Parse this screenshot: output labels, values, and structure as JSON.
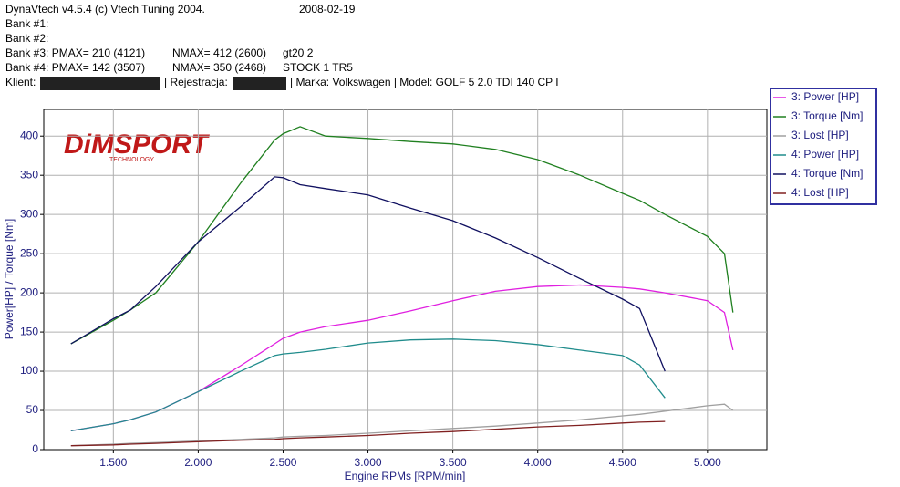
{
  "header": {
    "program": "DynaVtech v4.5.4 (c) Vtech Tuning 2004.",
    "date": "2008-02-19",
    "bank1": "Bank #1:",
    "bank2": "Bank #2:",
    "bank3": {
      "pmax": "Bank #3: PMAX= 210 (4121)",
      "nmax": "NMAX= 412 (2600)",
      "note": "gt20 2"
    },
    "bank4": {
      "pmax": "Bank #4: PMAX= 142 (3507)",
      "nmax": "NMAX= 350 (2468)",
      "note": "STOCK 1 TR5"
    },
    "client": {
      "label": "Klient:",
      "registration": "| Rejestracja:",
      "vehicle": "| Marka: Volkswagen | Model: GOLF 5 2.0 TDI 140 CP  I"
    }
  },
  "chart_data": {
    "type": "line",
    "logo": "DiMSPORT",
    "logo_sub": "TECHNOLOGY",
    "x_label": "Engine RPMs [RPM/min]",
    "y_label": "Power[HP] / Torque [Nm]",
    "x": [
      1250,
      1500,
      1600,
      1750,
      2000,
      2250,
      2450,
      2500,
      2600,
      2750,
      3000,
      3250,
      3500,
      3750,
      4000,
      4250,
      4500,
      4600,
      4750,
      5000,
      5100,
      5150
    ],
    "series": [
      {
        "name": "3: Power [HP]",
        "color": "#e020e0",
        "values": [
          24,
          33,
          38,
          48,
          74,
          107,
          135,
          142,
          150,
          157,
          165,
          177,
          190,
          202,
          208,
          210,
          207,
          205,
          200,
          190,
          175,
          127
        ]
      },
      {
        "name": "3: Torque [Nm]",
        "color": "#208020",
        "values": [
          135,
          165,
          178,
          200,
          265,
          340,
          395,
          403,
          412,
          400,
          397,
          393,
          390,
          383,
          370,
          350,
          327,
          318,
          300,
          272,
          250,
          175
        ]
      },
      {
        "name": "3: Lost [HP]",
        "color": "#a0a0a0",
        "values": [
          5,
          7,
          8,
          9,
          11,
          13,
          15,
          16,
          17,
          18,
          21,
          24,
          27,
          30,
          34,
          38,
          43,
          45,
          49,
          56,
          58,
          50
        ]
      },
      {
        "name": "4: Power [HP]",
        "color": "#208c8c",
        "values": [
          24,
          33,
          38,
          48,
          74,
          100,
          120,
          122,
          124,
          128,
          136,
          140,
          141,
          139,
          134,
          127,
          120,
          108,
          66,
          null,
          null,
          null
        ]
      },
      {
        "name": "4: Torque [Nm]",
        "color": "#101060",
        "values": [
          135,
          167,
          178,
          208,
          265,
          310,
          348,
          347,
          338,
          333,
          325,
          308,
          292,
          270,
          245,
          218,
          192,
          180,
          100,
          null,
          null,
          null
        ]
      },
      {
        "name": "4: Lost [HP]",
        "color": "#802020",
        "values": [
          5,
          6,
          7,
          8,
          10,
          12,
          13,
          14,
          15,
          16,
          18,
          21,
          23,
          26,
          29,
          31,
          34,
          35,
          36,
          null,
          null,
          null
        ]
      }
    ],
    "xlim": [
      1090,
      5350
    ],
    "ylim": [
      0,
      434
    ],
    "xticks": [
      {
        "value": 1500,
        "label": "1.500"
      },
      {
        "value": 2000,
        "label": "2.000"
      },
      {
        "value": 2500,
        "label": "2.500"
      },
      {
        "value": 3000,
        "label": "3.000"
      },
      {
        "value": 3500,
        "label": "3.500"
      },
      {
        "value": 4000,
        "label": "4.000"
      },
      {
        "value": 4500,
        "label": "4.500"
      },
      {
        "value": 5000,
        "label": "5.000"
      }
    ],
    "yticks": [
      0,
      50,
      100,
      150,
      200,
      250,
      300,
      350,
      400
    ],
    "grid": true,
    "legend": "right"
  }
}
